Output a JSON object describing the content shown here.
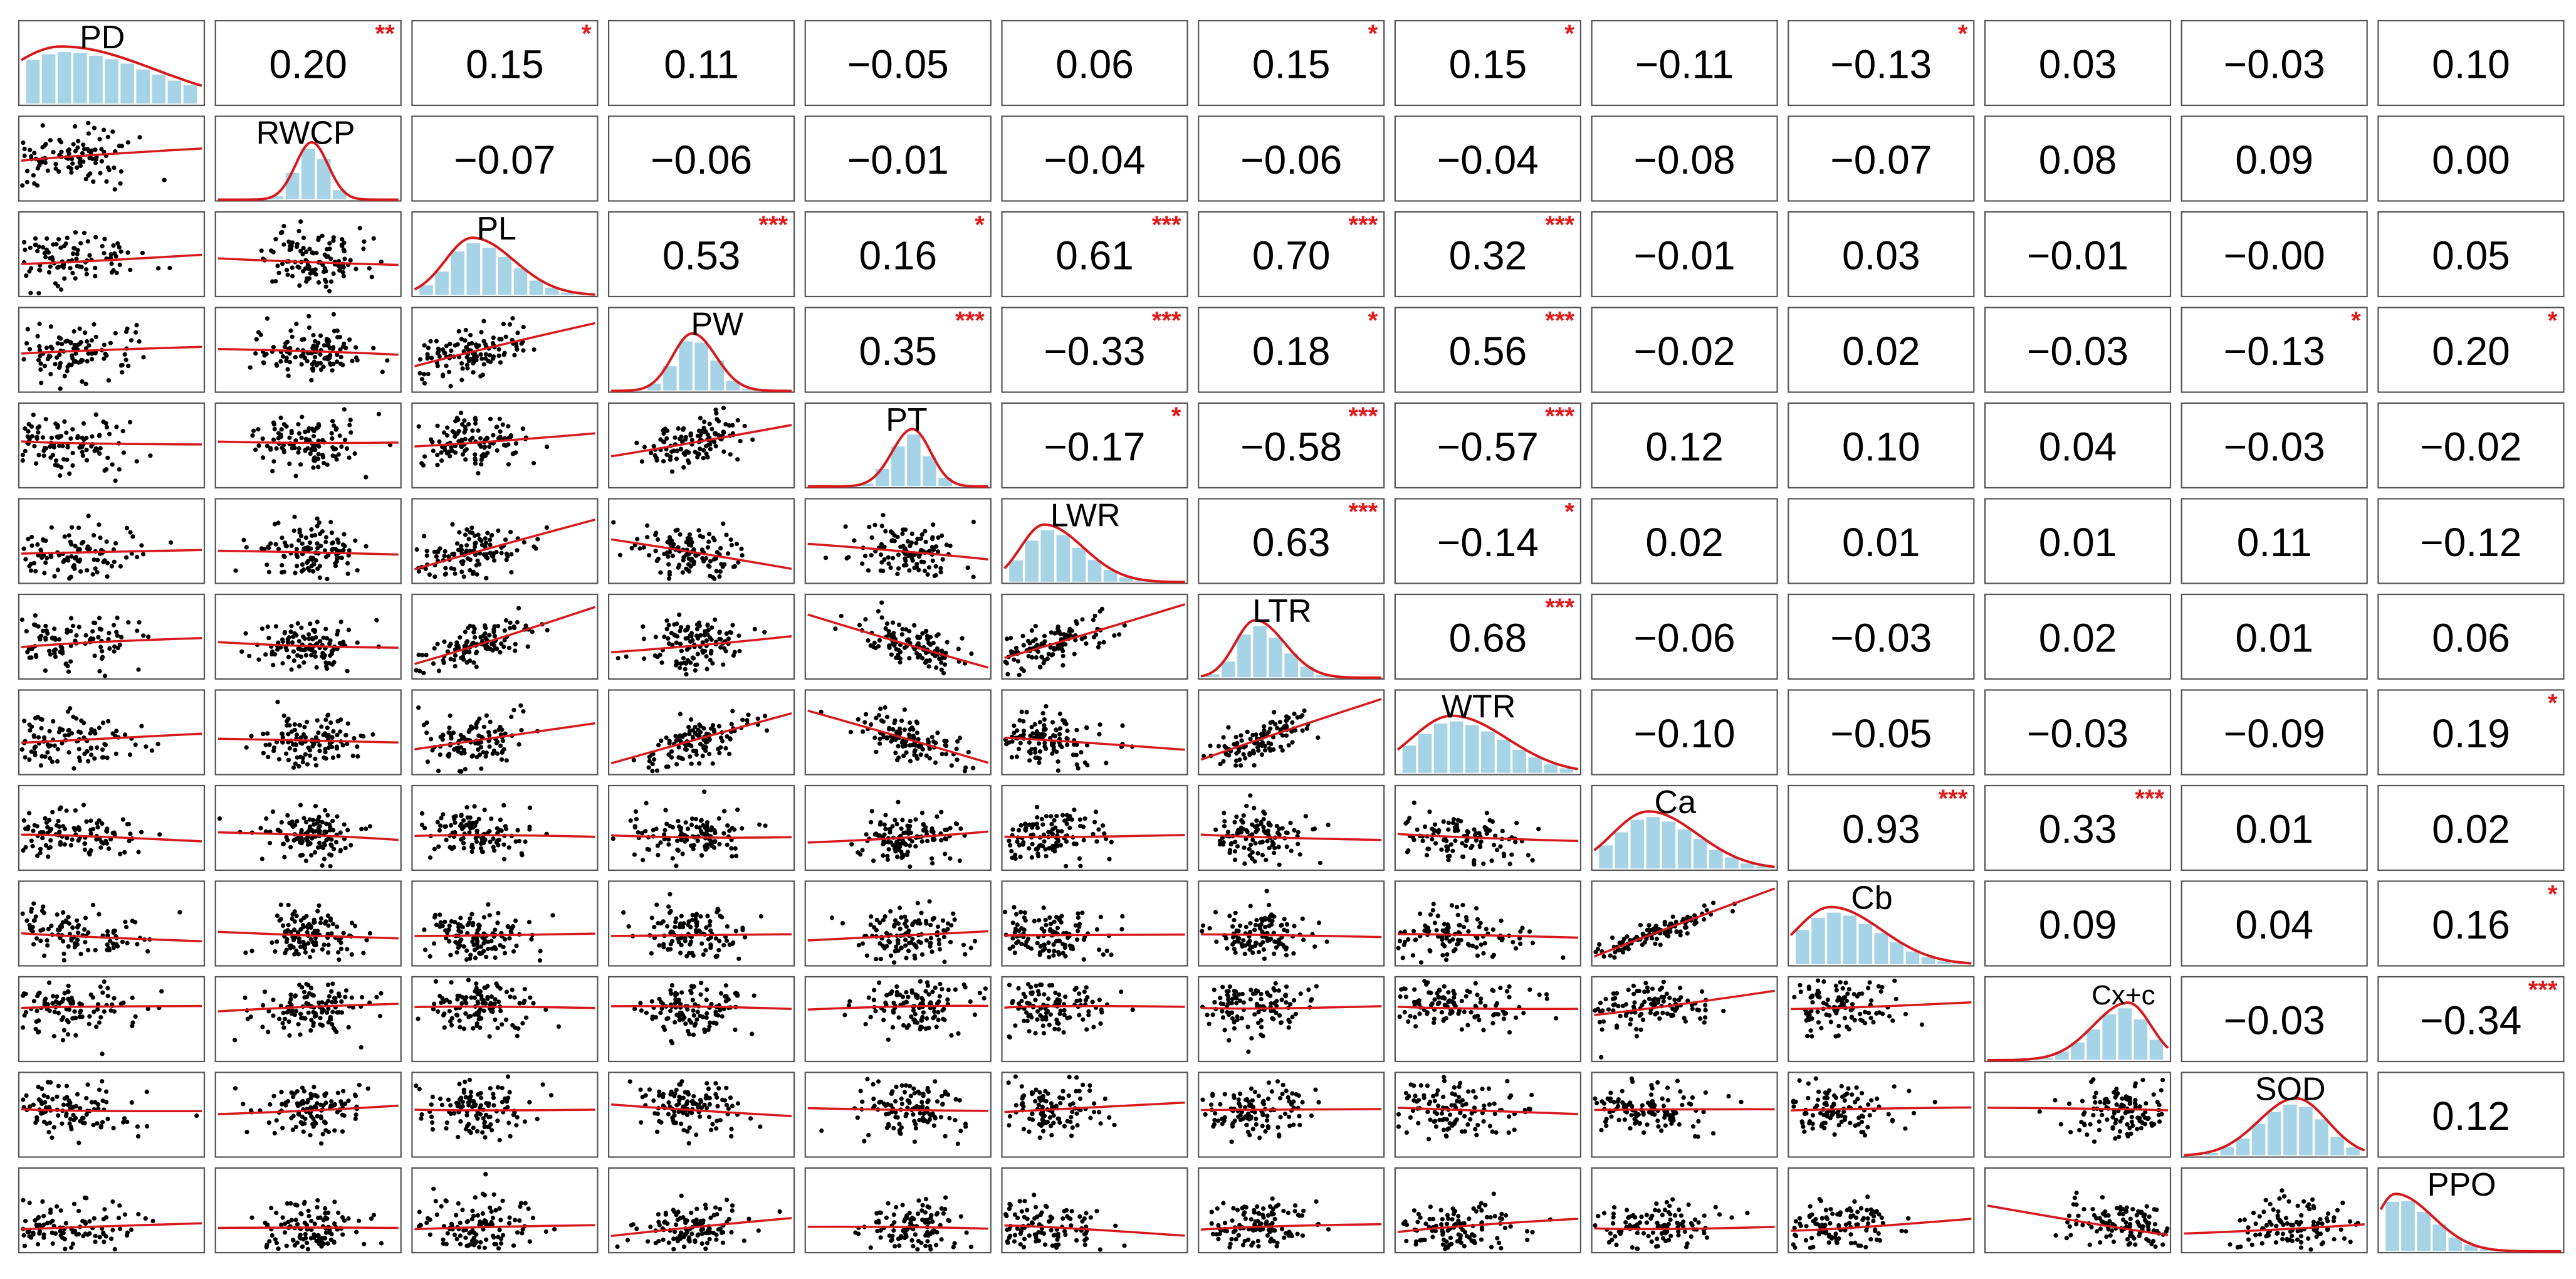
{
  "chart_data": {
    "type": "correlation-matrix",
    "variables": [
      "PD",
      "RWCP",
      "PL",
      "PW",
      "PT",
      "LWR",
      "LTR",
      "WTR",
      "Ca",
      "Cb",
      "Cx+c",
      "SOD",
      "PPO"
    ],
    "correlations": [
      [
        "",
        "0.20",
        "0.15",
        "0.11",
        "−0.05",
        "0.06",
        "0.15",
        "0.15",
        "−0.11",
        "−0.13",
        "0.03",
        "−0.03",
        "0.10"
      ],
      [
        "",
        "",
        "−0.07",
        "−0.06",
        "−0.01",
        "−0.04",
        "−0.06",
        "−0.04",
        "−0.08",
        "−0.07",
        "0.08",
        "0.09",
        "0.00"
      ],
      [
        "",
        "",
        "",
        "0.53",
        "0.16",
        "0.61",
        "0.70",
        "0.32",
        "−0.01",
        "0.03",
        "−0.01",
        "−0.00",
        "0.05"
      ],
      [
        "",
        "",
        "",
        "",
        "0.35",
        "−0.33",
        "0.18",
        "0.56",
        "−0.02",
        "0.02",
        "−0.03",
        "−0.13",
        "0.20"
      ],
      [
        "",
        "",
        "",
        "",
        "",
        "−0.17",
        "−0.58",
        "−0.57",
        "0.12",
        "0.10",
        "0.04",
        "−0.03",
        "−0.02"
      ],
      [
        "",
        "",
        "",
        "",
        "",
        "",
        "0.63",
        "−0.14",
        "0.02",
        "0.01",
        "0.01",
        "0.11",
        "−0.12"
      ],
      [
        "",
        "",
        "",
        "",
        "",
        "",
        "",
        "0.68",
        "−0.06",
        "−0.03",
        "0.02",
        "0.01",
        "0.06"
      ],
      [
        "",
        "",
        "",
        "",
        "",
        "",
        "",
        "",
        "−0.10",
        "−0.05",
        "−0.03",
        "−0.09",
        "0.19"
      ],
      [
        "",
        "",
        "",
        "",
        "",
        "",
        "",
        "",
        "",
        "0.93",
        "0.33",
        "0.01",
        "0.02"
      ],
      [
        "",
        "",
        "",
        "",
        "",
        "",
        "",
        "",
        "",
        "",
        "0.09",
        "0.04",
        "0.16"
      ],
      [
        "",
        "",
        "",
        "",
        "",
        "",
        "",
        "",
        "",
        "",
        "",
        "−0.03",
        "−0.34"
      ],
      [
        "",
        "",
        "",
        "",
        "",
        "",
        "",
        "",
        "",
        "",
        "",
        "",
        "0.12"
      ],
      [
        "",
        "",
        "",
        "",
        "",
        "",
        "",
        "",
        "",
        "",
        "",
        "",
        ""
      ]
    ],
    "significance": [
      [
        "",
        "**",
        "*",
        "",
        "",
        "",
        "*",
        "*",
        "",
        "*",
        "",
        "",
        ""
      ],
      [
        "",
        "",
        "",
        "",
        "",
        "",
        "",
        "",
        "",
        "",
        "",
        "",
        ""
      ],
      [
        "",
        "",
        "",
        "***",
        "*",
        "***",
        "***",
        "***",
        "",
        "",
        "",
        "",
        ""
      ],
      [
        "",
        "",
        "",
        "",
        "***",
        "***",
        "*",
        "***",
        "",
        "",
        "",
        "*",
        "*"
      ],
      [
        "",
        "",
        "",
        "",
        "",
        "*",
        "***",
        "***",
        "",
        "",
        "",
        "",
        ""
      ],
      [
        "",
        "",
        "",
        "",
        "",
        "",
        "***",
        "*",
        "",
        "",
        "",
        "",
        ""
      ],
      [
        "",
        "",
        "",
        "",
        "",
        "",
        "",
        "***",
        "",
        "",
        "",
        "",
        ""
      ],
      [
        "",
        "",
        "",
        "",
        "",
        "",
        "",
        "",
        "",
        "",
        "",
        "",
        "*"
      ],
      [
        "",
        "",
        "",
        "",
        "",
        "",
        "",
        "",
        "",
        "***",
        "***",
        "",
        ""
      ],
      [
        "",
        "",
        "",
        "",
        "",
        "",
        "",
        "",
        "",
        "",
        "",
        "",
        "*"
      ],
      [
        "",
        "",
        "",
        "",
        "",
        "",
        "",
        "",
        "",
        "",
        "",
        "",
        "***"
      ],
      [
        "",
        "",
        "",
        "",
        "",
        "",
        "",
        "",
        "",
        "",
        "",
        "",
        ""
      ],
      [
        "",
        "",
        "",
        "",
        "",
        "",
        "",
        "",
        "",
        "",
        "",
        "",
        ""
      ]
    ],
    "lower_panels": "scatter plot with red smoothed fit line",
    "diagonal_panels": "histogram with density curve and variable name",
    "colors": {
      "text": "#000000",
      "stars": "#e31a1c",
      "fit_line": "#d7191c",
      "histogram": "#a6d4e6",
      "density": "#d7191c",
      "points": "#000000",
      "border": "#444444"
    }
  }
}
